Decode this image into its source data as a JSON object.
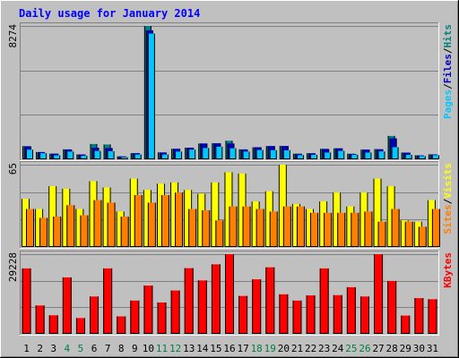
{
  "chart_data": [
    {
      "type": "bar",
      "title": "Daily usage for January 2014",
      "ylabel_max": "8274",
      "legend": [
        {
          "name": "Pages",
          "color": "#00c8ff"
        },
        {
          "name": "/",
          "color": "#000000"
        },
        {
          "name": "Files",
          "color": "#0000c0"
        },
        {
          "name": "/",
          "color": "#000000"
        },
        {
          "name": "Hits",
          "color": "#008080"
        }
      ],
      "ylim": [
        0,
        8274
      ],
      "categories": [
        "1",
        "2",
        "3",
        "4",
        "5",
        "6",
        "7",
        "8",
        "9",
        "10",
        "11",
        "12",
        "13",
        "14",
        "15",
        "16",
        "17",
        "18",
        "19",
        "20",
        "21",
        "22",
        "23",
        "24",
        "25",
        "26",
        "27",
        "28",
        "29",
        "30",
        "31"
      ],
      "weekend_days": [
        "4",
        "5",
        "11",
        "12",
        "18",
        "19",
        "25",
        "26"
      ],
      "series": [
        {
          "name": "Hits",
          "color": "#008080",
          "values": [
            820,
            450,
            350,
            620,
            300,
            950,
            920,
            180,
            380,
            8274,
            430,
            650,
            720,
            980,
            1000,
            1150,
            620,
            750,
            820,
            830,
            350,
            380,
            650,
            680,
            350,
            600,
            630,
            1450,
            420,
            250,
            310
          ]
        },
        {
          "name": "Files",
          "color": "#0000c0",
          "values": [
            800,
            450,
            350,
            610,
            300,
            720,
            700,
            180,
            380,
            8000,
            420,
            650,
            720,
            980,
            990,
            980,
            600,
            750,
            820,
            820,
            340,
            370,
            640,
            680,
            330,
            600,
            620,
            1300,
            410,
            240,
            300
          ]
        },
        {
          "name": "Pages",
          "color": "#00c8ff",
          "values": [
            600,
            380,
            250,
            480,
            220,
            520,
            500,
            130,
            300,
            7800,
            300,
            480,
            600,
            700,
            780,
            680,
            480,
            580,
            570,
            560,
            260,
            280,
            420,
            520,
            280,
            420,
            490,
            750,
            280,
            200,
            260
          ]
        }
      ]
    },
    {
      "type": "bar",
      "ylabel_max": "65",
      "legend": [
        {
          "name": "Sites",
          "color": "#ff8000"
        },
        {
          "name": "/",
          "color": "#000000"
        },
        {
          "name": "Visits",
          "color": "#ffff00"
        }
      ],
      "ylim": [
        0,
        65
      ],
      "categories": [
        "1",
        "2",
        "3",
        "4",
        "5",
        "6",
        "7",
        "8",
        "9",
        "10",
        "11",
        "12",
        "13",
        "14",
        "15",
        "16",
        "17",
        "18",
        "19",
        "20",
        "21",
        "22",
        "23",
        "24",
        "25",
        "26",
        "27",
        "28",
        "29",
        "30",
        "31"
      ],
      "series": [
        {
          "name": "Visits",
          "color": "#ffff00",
          "values": [
            38,
            30,
            48,
            46,
            30,
            52,
            47,
            28,
            54,
            45,
            50,
            51,
            45,
            42,
            51,
            59,
            58,
            36,
            44,
            65,
            34,
            30,
            36,
            43,
            32,
            43,
            54,
            48,
            21,
            20,
            37
          ]
        },
        {
          "name": "Sites",
          "color": "#ff8000",
          "values": [
            30,
            23,
            24,
            33,
            25,
            37,
            35,
            24,
            41,
            35,
            41,
            43,
            30,
            29,
            21,
            32,
            32,
            30,
            28,
            32,
            32,
            27,
            27,
            27,
            27,
            28,
            20,
            30,
            20,
            16,
            30
          ]
        }
      ]
    },
    {
      "type": "bar",
      "ylabel_max": "29228",
      "legend": [
        {
          "name": "KBytes",
          "color": "#ff0000"
        }
      ],
      "ylim": [
        0,
        29228
      ],
      "categories": [
        "1",
        "2",
        "3",
        "4",
        "5",
        "6",
        "7",
        "8",
        "9",
        "10",
        "11",
        "12",
        "13",
        "14",
        "15",
        "16",
        "17",
        "18",
        "19",
        "20",
        "21",
        "22",
        "23",
        "24",
        "25",
        "26",
        "27",
        "28",
        "29",
        "30",
        "31"
      ],
      "series": [
        {
          "name": "KBytes",
          "color": "#ff0000",
          "values": [
            24000,
            10400,
            6800,
            20700,
            5800,
            13700,
            24000,
            6400,
            12200,
            17700,
            11500,
            15900,
            24100,
            19600,
            25500,
            29228,
            13900,
            20000,
            24400,
            14500,
            12200,
            14100,
            24000,
            14200,
            17100,
            13700,
            29228,
            19400,
            6700,
            13100,
            12700
          ]
        }
      ]
    }
  ]
}
